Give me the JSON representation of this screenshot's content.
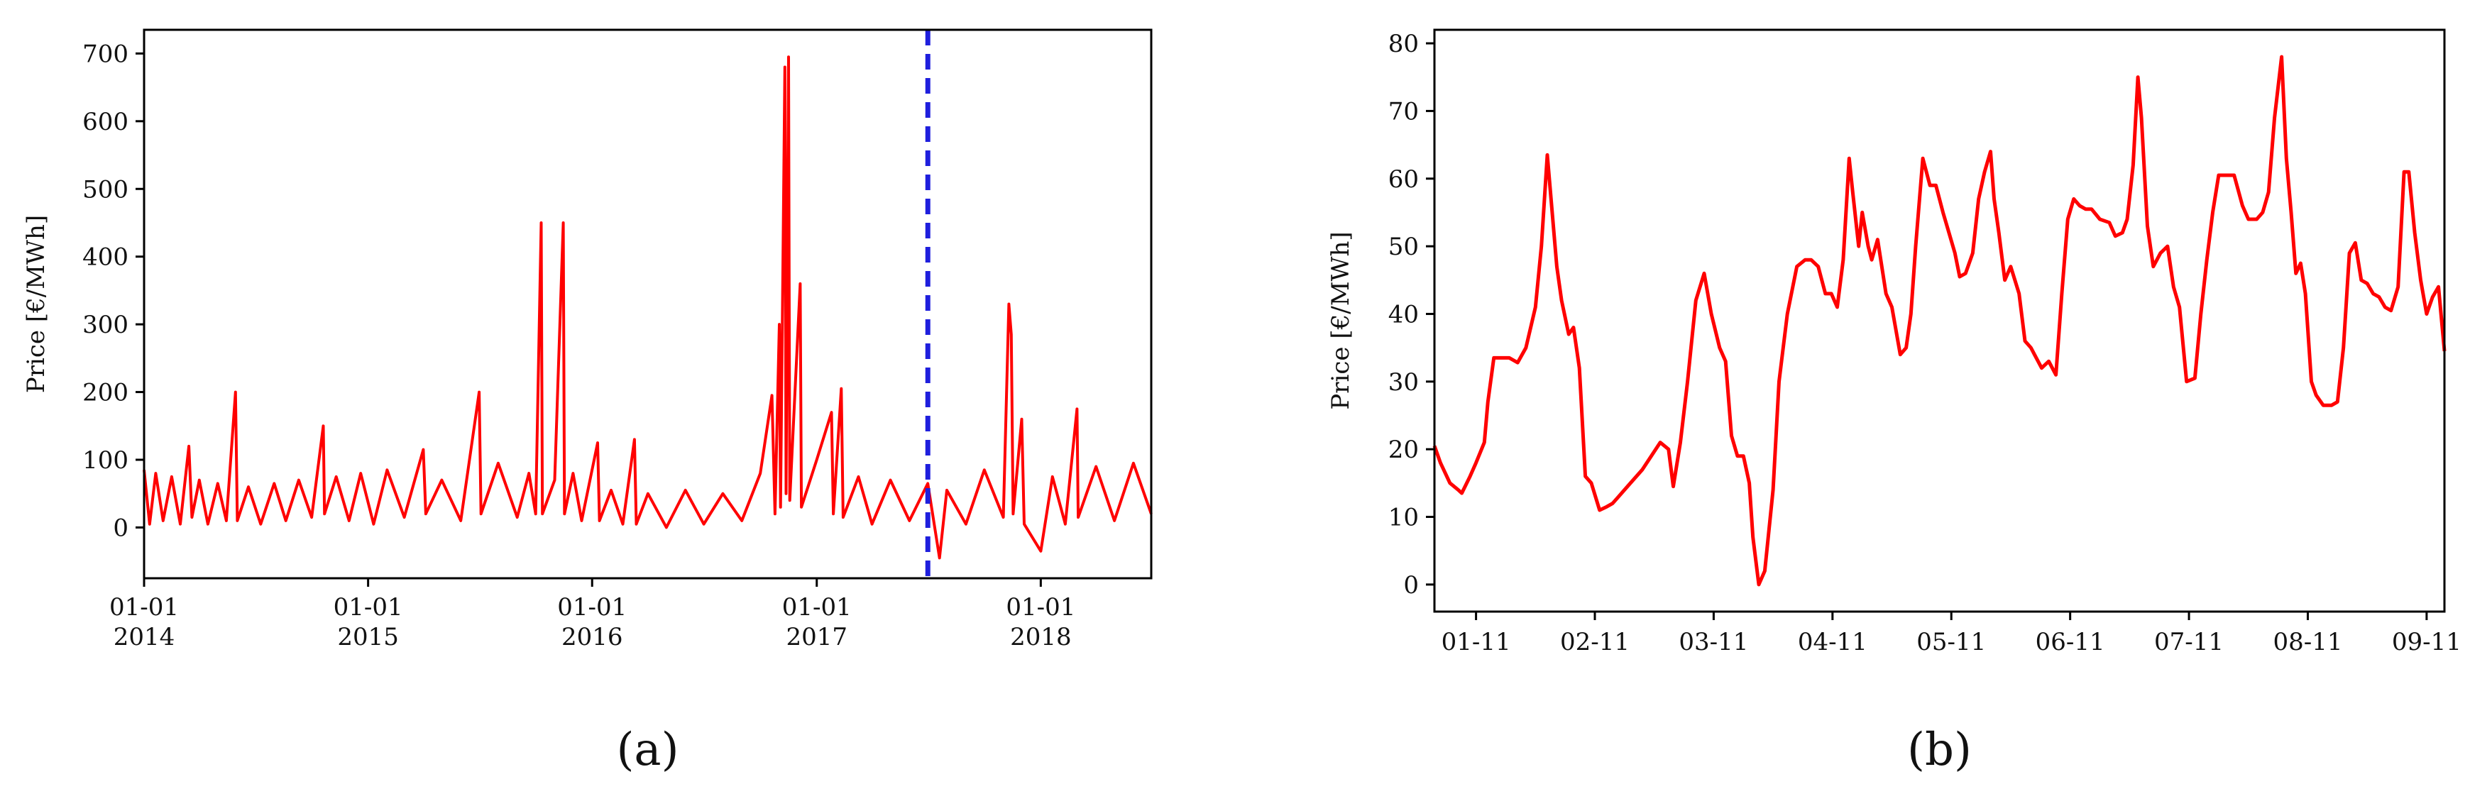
{
  "chart_data": [
    {
      "id": "a",
      "panel_label": "(a)",
      "type": "line",
      "ylabel": "Price [€/MWh]",
      "ylim": [
        -75,
        735
      ],
      "xlim": [
        "2014-01-01",
        "2018-06-30"
      ],
      "yticks": [
        0,
        100,
        200,
        300,
        400,
        500,
        600,
        700
      ],
      "xticks": [
        {
          "date": "2014-01-01",
          "line1": "01-01",
          "line2": "2014"
        },
        {
          "date": "2015-01-01",
          "line1": "01-01",
          "line2": "2015"
        },
        {
          "date": "2016-01-01",
          "line1": "01-01",
          "line2": "2016"
        },
        {
          "date": "2017-01-01",
          "line1": "01-01",
          "line2": "2017"
        },
        {
          "date": "2018-01-01",
          "line1": "01-01",
          "line2": "2018"
        }
      ],
      "vline": {
        "x": "2017-07-01",
        "style": "dashed",
        "color": "#1f1fdd"
      },
      "line_color": "#ff0000",
      "series": [
        {
          "points": [
            {
              "x": "2014-01-01",
              "y": 85
            },
            {
              "x": "2014-01-10",
              "y": 5
            },
            {
              "x": "2014-01-20",
              "y": 80
            },
            {
              "x": "2014-02-01",
              "y": 10
            },
            {
              "x": "2014-02-15",
              "y": 75
            },
            {
              "x": "2014-03-01",
              "y": 5
            },
            {
              "x": "2014-03-15",
              "y": 120
            },
            {
              "x": "2014-03-20",
              "y": 15
            },
            {
              "x": "2014-04-01",
              "y": 70
            },
            {
              "x": "2014-04-15",
              "y": 5
            },
            {
              "x": "2014-05-01",
              "y": 65
            },
            {
              "x": "2014-05-15",
              "y": 10
            },
            {
              "x": "2014-05-30",
              "y": 200
            },
            {
              "x": "2014-06-02",
              "y": 10
            },
            {
              "x": "2014-06-20",
              "y": 60
            },
            {
              "x": "2014-07-10",
              "y": 5
            },
            {
              "x": "2014-08-01",
              "y": 65
            },
            {
              "x": "2014-08-20",
              "y": 10
            },
            {
              "x": "2014-09-10",
              "y": 70
            },
            {
              "x": "2014-10-01",
              "y": 15
            },
            {
              "x": "2014-10-20",
              "y": 150
            },
            {
              "x": "2014-10-22",
              "y": 20
            },
            {
              "x": "2014-11-10",
              "y": 75
            },
            {
              "x": "2014-12-01",
              "y": 10
            },
            {
              "x": "2014-12-20",
              "y": 80
            },
            {
              "x": "2015-01-10",
              "y": 5
            },
            {
              "x": "2015-02-01",
              "y": 85
            },
            {
              "x": "2015-03-01",
              "y": 15
            },
            {
              "x": "2015-04-01",
              "y": 115
            },
            {
              "x": "2015-04-05",
              "y": 20
            },
            {
              "x": "2015-05-01",
              "y": 70
            },
            {
              "x": "2015-06-01",
              "y": 10
            },
            {
              "x": "2015-07-01",
              "y": 200
            },
            {
              "x": "2015-07-04",
              "y": 20
            },
            {
              "x": "2015-08-01",
              "y": 95
            },
            {
              "x": "2015-09-01",
              "y": 15
            },
            {
              "x": "2015-09-20",
              "y": 80
            },
            {
              "x": "2015-10-01",
              "y": 20
            },
            {
              "x": "2015-10-10",
              "y": 450
            },
            {
              "x": "2015-10-12",
              "y": 20
            },
            {
              "x": "2015-11-01",
              "y": 70
            },
            {
              "x": "2015-11-15",
              "y": 450
            },
            {
              "x": "2015-11-17",
              "y": 20
            },
            {
              "x": "2015-12-01",
              "y": 80
            },
            {
              "x": "2015-12-15",
              "y": 10
            },
            {
              "x": "2016-01-10",
              "y": 125
            },
            {
              "x": "2016-01-13",
              "y": 10
            },
            {
              "x": "2016-02-01",
              "y": 55
            },
            {
              "x": "2016-02-20",
              "y": 5
            },
            {
              "x": "2016-03-10",
              "y": 130
            },
            {
              "x": "2016-03-13",
              "y": 5
            },
            {
              "x": "2016-04-01",
              "y": 50
            },
            {
              "x": "2016-05-01",
              "y": 0
            },
            {
              "x": "2016-06-01",
              "y": 55
            },
            {
              "x": "2016-07-01",
              "y": 5
            },
            {
              "x": "2016-08-01",
              "y": 50
            },
            {
              "x": "2016-09-01",
              "y": 10
            },
            {
              "x": "2016-10-01",
              "y": 80
            },
            {
              "x": "2016-10-20",
              "y": 195
            },
            {
              "x": "2016-10-25",
              "y": 20
            },
            {
              "x": "2016-11-01",
              "y": 300
            },
            {
              "x": "2016-11-03",
              "y": 30
            },
            {
              "x": "2016-11-10",
              "y": 680
            },
            {
              "x": "2016-11-12",
              "y": 50
            },
            {
              "x": "2016-11-16",
              "y": 695
            },
            {
              "x": "2016-11-18",
              "y": 40
            },
            {
              "x": "2016-12-05",
              "y": 360
            },
            {
              "x": "2016-12-07",
              "y": 30
            },
            {
              "x": "2017-01-01",
              "y": 100
            },
            {
              "x": "2017-01-25",
              "y": 170
            },
            {
              "x": "2017-01-28",
              "y": 20
            },
            {
              "x": "2017-02-10",
              "y": 205
            },
            {
              "x": "2017-02-13",
              "y": 15
            },
            {
              "x": "2017-03-10",
              "y": 75
            },
            {
              "x": "2017-04-01",
              "y": 5
            },
            {
              "x": "2017-05-01",
              "y": 70
            },
            {
              "x": "2017-06-01",
              "y": 10
            },
            {
              "x": "2017-07-01",
              "y": 65
            },
            {
              "x": "2017-07-20",
              "y": -45
            },
            {
              "x": "2017-08-01",
              "y": 55
            },
            {
              "x": "2017-09-01",
              "y": 5
            },
            {
              "x": "2017-10-01",
              "y": 85
            },
            {
              "x": "2017-11-01",
              "y": 15
            },
            {
              "x": "2017-11-10",
              "y": 330
            },
            {
              "x": "2017-11-14",
              "y": 285
            },
            {
              "x": "2017-11-17",
              "y": 20
            },
            {
              "x": "2017-12-01",
              "y": 160
            },
            {
              "x": "2017-12-05",
              "y": 5
            },
            {
              "x": "2018-01-01",
              "y": -35
            },
            {
              "x": "2018-01-20",
              "y": 75
            },
            {
              "x": "2018-02-10",
              "y": 5
            },
            {
              "x": "2018-03-01",
              "y": 175
            },
            {
              "x": "2018-03-03",
              "y": 15
            },
            {
              "x": "2018-04-01",
              "y": 90
            },
            {
              "x": "2018-05-01",
              "y": 10
            },
            {
              "x": "2018-06-01",
              "y": 95
            },
            {
              "x": "2018-06-30",
              "y": 20
            }
          ]
        }
      ]
    },
    {
      "id": "b",
      "panel_label": "(b)",
      "type": "line",
      "ylabel": "Price [€/MWh]",
      "ylim": [
        -4,
        82
      ],
      "xlim": [
        0.65,
        9.15
      ],
      "yticks": [
        0,
        10,
        20,
        30,
        40,
        50,
        60,
        70,
        80
      ],
      "xticks": [
        {
          "x": 1,
          "label": "01-11"
        },
        {
          "x": 2,
          "label": "02-11"
        },
        {
          "x": 3,
          "label": "03-11"
        },
        {
          "x": 4,
          "label": "04-11"
        },
        {
          "x": 5,
          "label": "05-11"
        },
        {
          "x": 6,
          "label": "06-11"
        },
        {
          "x": 7,
          "label": "07-11"
        },
        {
          "x": 8,
          "label": "08-11"
        },
        {
          "x": 9,
          "label": "09-11"
        }
      ],
      "line_color": "#ff0000",
      "series": [
        {
          "x": [
            0.65,
            0.7,
            0.78,
            0.85,
            0.88,
            0.95,
            1.0,
            1.07,
            1.1,
            1.15,
            1.2,
            1.25,
            1.28,
            1.35,
            1.42,
            1.5,
            1.55,
            1.6,
            1.68,
            1.72,
            1.78,
            1.82,
            1.87,
            1.92,
            1.97,
            2.04,
            2.1,
            2.15,
            2.2,
            2.3,
            2.4,
            2.55,
            2.62,
            2.66,
            2.72,
            2.78,
            2.85,
            2.92,
            2.98,
            3.05,
            3.1,
            3.15,
            3.2,
            3.25,
            3.3,
            3.33,
            3.38,
            3.43,
            3.5,
            3.55,
            3.62,
            3.7,
            3.77,
            3.82,
            3.88,
            3.94,
            3.99,
            4.04,
            4.09,
            4.14,
            4.17,
            4.22,
            4.25,
            4.3,
            4.33,
            4.38,
            4.45,
            4.5,
            4.57,
            4.62,
            4.66,
            4.7,
            4.76,
            4.82,
            4.87,
            4.93,
            4.98,
            5.03,
            5.07,
            5.12,
            5.18,
            5.23,
            5.28,
            5.33,
            5.36,
            5.4,
            5.45,
            5.5,
            5.57,
            5.62,
            5.67,
            5.7,
            5.76,
            5.82,
            5.88,
            5.93,
            5.98,
            6.03,
            6.08,
            6.13,
            6.18,
            6.25,
            6.33,
            6.38,
            6.44,
            6.48,
            6.53,
            6.57,
            6.6,
            6.65,
            6.7,
            6.76,
            6.82,
            6.87,
            6.92,
            6.98,
            7.05,
            7.1,
            7.15,
            7.2,
            7.25,
            7.3,
            7.38,
            7.45,
            7.5,
            7.57,
            7.62,
            7.67,
            7.72,
            7.78,
            7.82,
            7.86,
            7.9,
            7.94,
            7.98,
            8.03,
            8.07,
            8.13,
            8.2,
            8.25,
            8.3,
            8.35,
            8.4,
            8.45,
            8.5,
            8.55,
            8.6,
            8.65,
            8.7,
            8.76,
            8.81,
            8.85,
            8.9,
            8.95,
            9.0,
            9.05,
            9.1,
            9.15
          ],
          "y": [
            20.5,
            18,
            15,
            14,
            13.5,
            16,
            18,
            21,
            27,
            33.5,
            33.5,
            33.5,
            33.5,
            32.8,
            35,
            41,
            50,
            63.5,
            47,
            42,
            37,
            38,
            32,
            16,
            15,
            11,
            11.5,
            12,
            13,
            15,
            17,
            21,
            20,
            14.5,
            21,
            30,
            42,
            46,
            40,
            35,
            33,
            22,
            19,
            19,
            15,
            7,
            0,
            2,
            14,
            30,
            40,
            47,
            48,
            48,
            47,
            43,
            43,
            41,
            48,
            63,
            58,
            50,
            55,
            50,
            48,
            51,
            43,
            41,
            34,
            35,
            40,
            50,
            63,
            59,
            59,
            55,
            52,
            49,
            45.5,
            46,
            49,
            57,
            61,
            64,
            57,
            52,
            45,
            47,
            43,
            36,
            35,
            34,
            32,
            33,
            31,
            43,
            54,
            57,
            56,
            55.5,
            55.5,
            54,
            53.5,
            51.5,
            52,
            54,
            62,
            75,
            69,
            53,
            47,
            49,
            50,
            44,
            41,
            30,
            30.5,
            40,
            48,
            55,
            60.5,
            60.5,
            60.5,
            56,
            54,
            54,
            55,
            58,
            69,
            78,
            63,
            55,
            46,
            47.5,
            43,
            30,
            28,
            26.5,
            26.5,
            27,
            35,
            49,
            50.5,
            45,
            44.5,
            43,
            42.5,
            41,
            40.5,
            44,
            61,
            61,
            52,
            45,
            40,
            42.5,
            44,
            34.5
          ]
        }
      ]
    }
  ]
}
